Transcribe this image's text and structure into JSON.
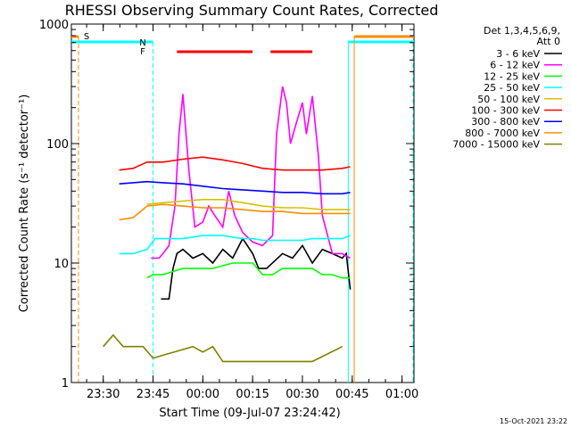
{
  "chart_data": {
    "type": "line",
    "title": "RHESSI Observing Summary Count Rates, Corrected",
    "xlabel": "Start Time (09-Jul-07 23:24:42)",
    "ylabel": "Corrected Count Rate (s⁻¹ detector⁻¹)",
    "yscale": "log",
    "xlim": [
      23.34,
      25.06
    ],
    "ylim": [
      1,
      1000
    ],
    "x_ticks": [
      {
        "v": 23.5,
        "label": "23:30"
      },
      {
        "v": 23.75,
        "label": "23:45"
      },
      {
        "v": 24.0,
        "label": "00:00"
      },
      {
        "v": 24.25,
        "label": "00:15"
      },
      {
        "v": 24.5,
        "label": "00:30"
      },
      {
        "v": 24.75,
        "label": "00:45"
      },
      {
        "v": 25.0,
        "label": "01:00"
      }
    ],
    "y_ticks": [
      {
        "v": 1,
        "label": "1"
      },
      {
        "v": 10,
        "label": "10"
      },
      {
        "v": 100,
        "label": "100"
      },
      {
        "v": 1000,
        "label": "1000"
      }
    ],
    "legend_placement": "right",
    "legend_header": [
      "Det 1,3,4,5,6,9,",
      "Att 0"
    ],
    "grid": false,
    "series": [
      {
        "name": "3 - 6 keV",
        "color": "#000000",
        "x": [
          23.79,
          23.83,
          23.85,
          23.87,
          23.9,
          23.95,
          24.0,
          24.05,
          24.1,
          24.15,
          24.2,
          24.25,
          24.28,
          24.32,
          24.4,
          24.45,
          24.5,
          24.55,
          24.6,
          24.65,
          24.7,
          24.72,
          24.74
        ],
        "y": [
          5,
          5,
          9,
          12,
          13,
          11,
          12,
          10,
          13,
          11,
          16,
          12,
          9,
          9,
          12,
          11,
          14,
          10,
          13,
          12,
          11,
          12,
          6
        ]
      },
      {
        "name": "6 - 12 keV",
        "color": "#ff00ff",
        "x": [
          23.74,
          23.78,
          23.8,
          23.83,
          23.86,
          23.88,
          23.9,
          23.93,
          23.96,
          24.0,
          24.03,
          24.06,
          24.1,
          24.13,
          24.16,
          24.2,
          24.25,
          24.3,
          24.35,
          24.37,
          24.4,
          24.42,
          24.44,
          24.47,
          24.5,
          24.52,
          24.55,
          24.58,
          24.6,
          24.65,
          24.7,
          24.74
        ],
        "y": [
          11,
          11,
          12,
          14,
          30,
          120,
          260,
          60,
          20,
          22,
          30,
          25,
          20,
          40,
          25,
          18,
          15,
          14,
          17,
          120,
          300,
          220,
          100,
          150,
          220,
          120,
          250,
          80,
          25,
          12,
          12,
          11
        ]
      },
      {
        "name": "12 - 25 keV",
        "color": "#00ff00",
        "x": [
          23.72,
          23.75,
          23.8,
          23.85,
          23.9,
          23.95,
          24.0,
          24.05,
          24.1,
          24.15,
          24.2,
          24.25,
          24.3,
          24.35,
          24.4,
          24.45,
          24.5,
          24.55,
          24.6,
          24.65,
          24.7,
          24.74
        ],
        "y": [
          7.5,
          8,
          8,
          8.5,
          9,
          9,
          9,
          9,
          9.5,
          10,
          10,
          10,
          8,
          8,
          9,
          9,
          9,
          9,
          8,
          8,
          7.5,
          7.5
        ]
      },
      {
        "name": "25 - 50 keV",
        "color": "#00ffff",
        "x": [
          23.58,
          23.65,
          23.72,
          23.76,
          23.8,
          23.85,
          23.9,
          23.95,
          24.0,
          24.05,
          24.1,
          24.15,
          24.2,
          24.25,
          24.3,
          24.35,
          24.4,
          24.45,
          24.5,
          24.55,
          24.6,
          24.65,
          24.7,
          24.74
        ],
        "y": [
          12,
          12,
          13,
          16,
          16,
          16,
          16,
          16.5,
          17,
          17,
          17,
          16.5,
          16,
          16,
          15.5,
          15.5,
          15.5,
          15.5,
          15.5,
          16,
          16,
          16,
          16,
          17
        ]
      },
      {
        "name": "50 - 100 keV",
        "color": "#d4c200",
        "x": [
          23.72,
          23.8,
          23.9,
          24.0,
          24.1,
          24.2,
          24.3,
          24.4,
          24.5,
          24.6,
          24.7,
          24.74
        ],
        "y": [
          31,
          32,
          33,
          34,
          34,
          32,
          30,
          29,
          29,
          28,
          28,
          28
        ]
      },
      {
        "name": "100 - 300 keV",
        "color": "#ff0000",
        "x": [
          23.58,
          23.65,
          23.72,
          23.8,
          23.9,
          24.0,
          24.1,
          24.2,
          24.3,
          24.4,
          24.5,
          24.6,
          24.7,
          24.74
        ],
        "y": [
          60,
          62,
          70,
          70,
          74,
          77,
          73,
          68,
          62,
          60,
          60,
          60,
          62,
          64
        ]
      },
      {
        "name": "300 - 800 keV",
        "color": "#0000ff",
        "x": [
          23.58,
          23.65,
          23.72,
          23.8,
          23.9,
          24.0,
          24.1,
          24.2,
          24.3,
          24.4,
          24.5,
          24.6,
          24.7,
          24.74
        ],
        "y": [
          46,
          47,
          48,
          47,
          46,
          44,
          42,
          41,
          40,
          39,
          39,
          38,
          38,
          39
        ]
      },
      {
        "name": "800 - 7000 keV",
        "color": "#ff8c00",
        "x": [
          23.58,
          23.65,
          23.72,
          23.8,
          23.9,
          24.0,
          24.1,
          24.2,
          24.3,
          24.4,
          24.5,
          24.6,
          24.7,
          24.74
        ],
        "y": [
          23,
          24,
          30,
          31,
          30,
          29,
          29,
          28,
          27,
          27,
          26,
          26,
          26,
          26
        ]
      },
      {
        "name": "7000 - 15000 keV",
        "color": "#808000",
        "x": [
          23.5,
          23.55,
          23.6,
          23.65,
          23.7,
          23.75,
          23.95,
          24.0,
          24.05,
          24.1,
          24.55,
          24.7
        ],
        "y": [
          2,
          2.5,
          2,
          2,
          2,
          1.6,
          2,
          1.8,
          2,
          1.5,
          1.5,
          2
        ]
      }
    ],
    "annotations": [
      {
        "label": "S",
        "color": "#ff8c00"
      },
      {
        "label": "N",
        "color": "#00ffff"
      },
      {
        "label": "F",
        "color": "#ff0000"
      }
    ],
    "flare_bars": [
      [
        23.87,
        24.25
      ],
      [
        24.34,
        24.55
      ]
    ],
    "night_intervals": [
      [
        23.32,
        23.75
      ],
      [
        24.73,
        25.06
      ]
    ],
    "saa_interval": [
      24.76,
      25.06
    ]
  },
  "timestamp": "15-Oct-2021 23:22"
}
